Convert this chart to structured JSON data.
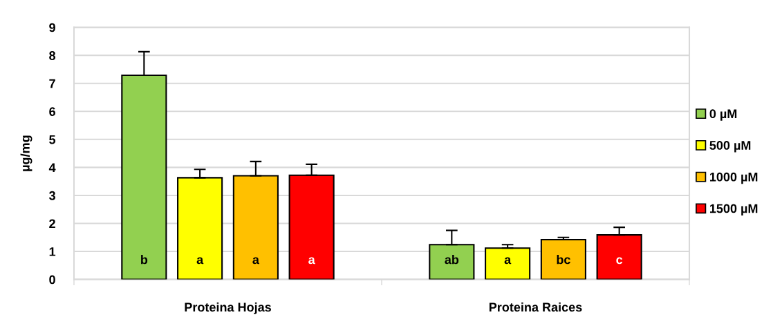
{
  "chart_data": {
    "type": "bar",
    "ylabel": "µg/mg",
    "categories": [
      "Proteina Hojas",
      "Proteina Raices"
    ],
    "series": [
      {
        "name": "0 µM",
        "color": "#92d050",
        "values": [
          7.29,
          1.24
        ],
        "errors": [
          [
            7.29,
            8.13
          ],
          [
            1.24,
            1.75
          ]
        ],
        "value_labels": [
          "b",
          "ab"
        ]
      },
      {
        "name": "500 µM",
        "color": "#ffff00",
        "values": [
          3.63,
          1.12
        ],
        "errors": [
          [
            3.63,
            3.93
          ],
          [
            1.12,
            1.24
          ]
        ],
        "value_labels": [
          "a",
          "a"
        ]
      },
      {
        "name": "1000 µM",
        "color": "#ffc000",
        "values": [
          3.7,
          1.42
        ],
        "errors": [
          [
            3.7,
            4.21
          ],
          [
            1.42,
            1.5
          ]
        ],
        "value_labels": [
          "a",
          "bc"
        ]
      },
      {
        "name": "1500 µM",
        "color": "#ff0000",
        "values": [
          3.72,
          1.59
        ],
        "errors": [
          [
            3.72,
            4.11
          ],
          [
            1.59,
            1.86
          ]
        ],
        "value_labels": [
          "a",
          "c"
        ]
      }
    ],
    "ylim": [
      0,
      9
    ],
    "yticks": [
      0,
      1,
      2,
      3,
      4,
      5,
      6,
      7,
      8,
      9
    ],
    "grid": "y",
    "legend": "right"
  }
}
